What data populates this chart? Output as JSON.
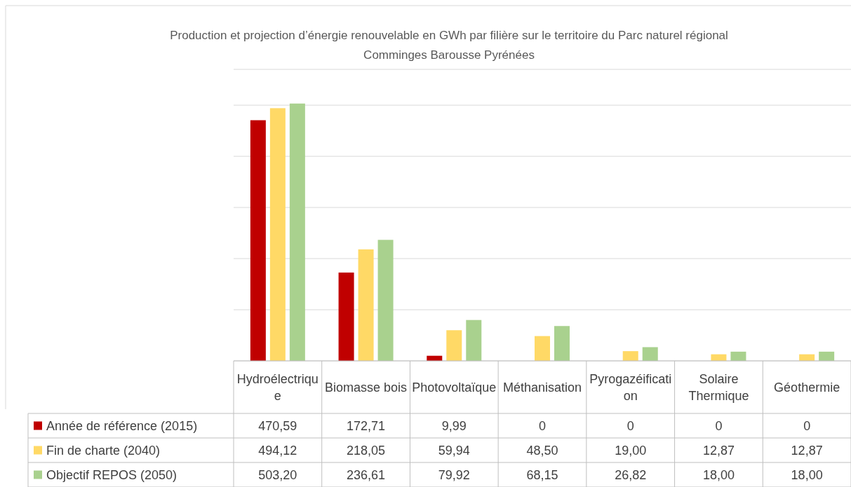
{
  "chart_data": {
    "type": "bar",
    "title": "Production et projection d’énergie renouvelable en GWh par filière sur le territoire du Parc naturel régional Comminges Barousse Pyrénées",
    "categories": [
      "Hydroélectrique",
      "Biomasse bois",
      "Photovoltaïque",
      "Méthanisation",
      "Pyrogazéification",
      "Solaire Thermique",
      "Géothermie"
    ],
    "series": [
      {
        "name": "Année de référence (2015)",
        "color": "#c00000",
        "values": [
          470.59,
          172.71,
          9.99,
          0,
          0,
          0,
          0
        ],
        "value_labels": [
          "470,59",
          "172,71",
          "9,99",
          "0",
          "0",
          "0",
          "0"
        ]
      },
      {
        "name": "Fin de charte (2040)",
        "color": "#ffd966",
        "values": [
          494.12,
          218.05,
          59.94,
          48.5,
          19,
          12.87,
          12.87
        ],
        "value_labels": [
          "494,12",
          "218,05",
          "59,94",
          "48,50",
          "19,00",
          "12,87",
          "12,87"
        ]
      },
      {
        "name": "Objectif REPOS (2050)",
        "color": "#a9d18e",
        "values": [
          503.2,
          236.61,
          79.92,
          68.15,
          26.82,
          18,
          18
        ],
        "value_labels": [
          "503,20",
          "236,61",
          "79,92",
          "68,15",
          "26,82",
          "18,00",
          "18,00"
        ]
      }
    ],
    "ylim": [
      0,
      570
    ],
    "yticks": [
      {
        "value": 0,
        "label": null
      },
      {
        "value": 100,
        "label": null
      },
      {
        "value": 200,
        "label": null
      },
      {
        "value": 300,
        "label": null
      },
      {
        "value": 400,
        "label": null
      },
      {
        "value": 500,
        "label": null
      }
    ],
    "tick_labels": "x",
    "grid": "y",
    "legend": "bottom left"
  }
}
